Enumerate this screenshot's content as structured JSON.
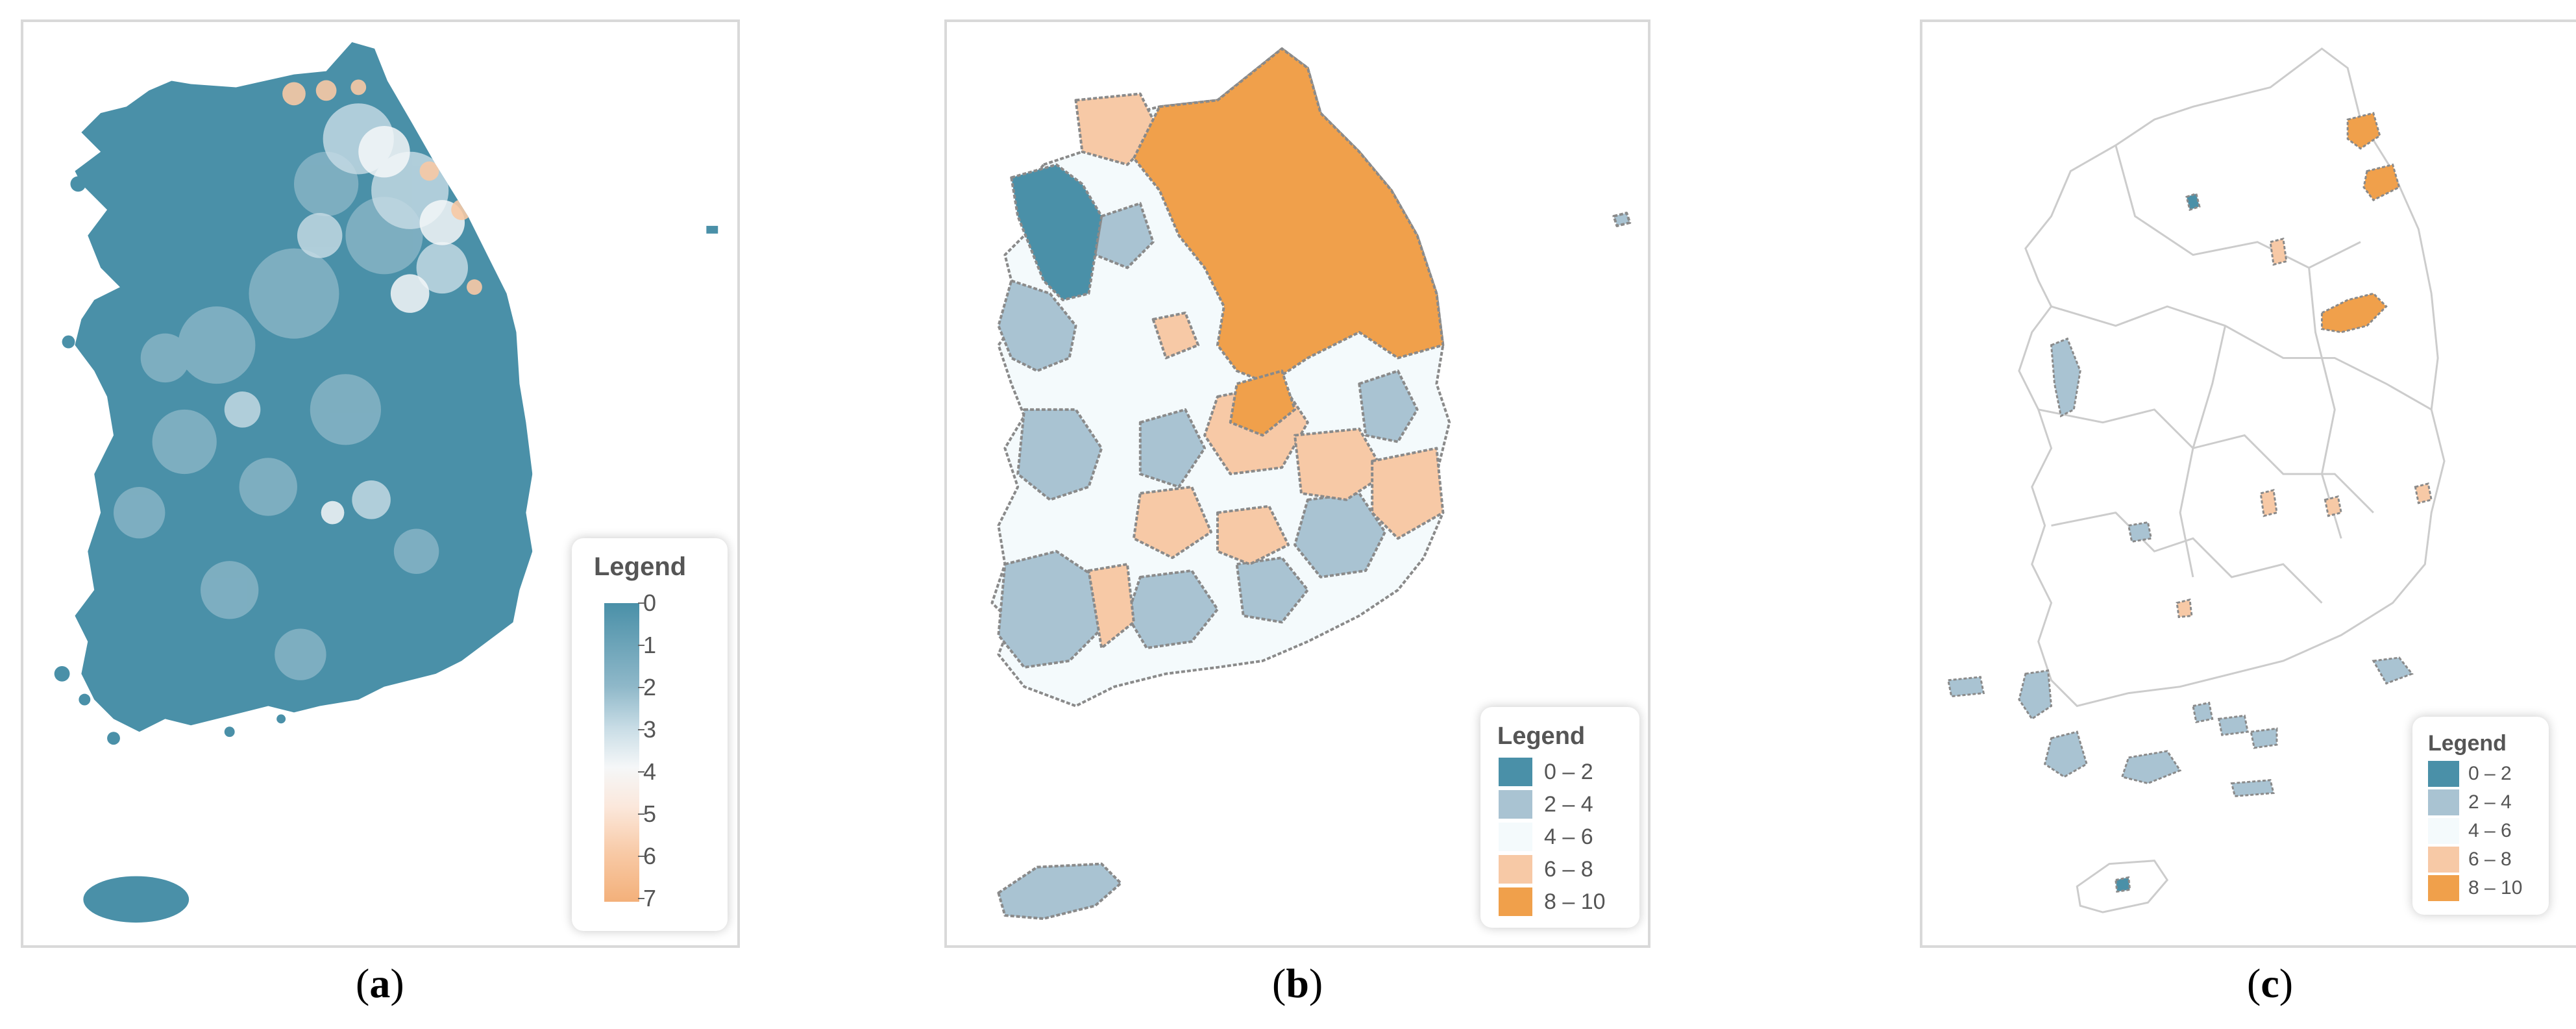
{
  "panels": [
    {
      "id": "a",
      "caption": "a",
      "legend": {
        "title": "Legend",
        "type": "continuous",
        "ticks": [
          "0",
          "1",
          "2",
          "3",
          "4",
          "5",
          "6",
          "7"
        ],
        "colors": [
          "#4a90a8",
          "#f5f7f8",
          "#f3b07a"
        ]
      }
    },
    {
      "id": "b",
      "caption": "b",
      "legend": {
        "title": "Legend",
        "type": "classes",
        "classes": [
          {
            "label": "0 – 2",
            "color": "#4a90a8"
          },
          {
            "label": "2 – 4",
            "color": "#a9c3d2"
          },
          {
            "label": "4 – 6",
            "color": "#f4fafc"
          },
          {
            "label": "6 – 8",
            "color": "#f7c9a6"
          },
          {
            "label": "8 – 10",
            "color": "#f0a04b"
          }
        ]
      }
    },
    {
      "id": "c",
      "caption": "c",
      "legend": {
        "title": "Legend",
        "type": "classes",
        "classes": [
          {
            "label": "0 – 2",
            "color": "#4a90a8"
          },
          {
            "label": "2 – 4",
            "color": "#a9c3d2"
          },
          {
            "label": "4 – 6",
            "color": "#f4fafc"
          },
          {
            "label": "6 – 8",
            "color": "#f7c9a6"
          },
          {
            "label": "8 – 10",
            "color": "#f0a04b"
          }
        ]
      }
    }
  ],
  "colors": {
    "teal": "#4a90a8",
    "light_blue": "#a9c3d2",
    "near_white": "#f4fafc",
    "peach": "#f7c9a6",
    "orange": "#f0a04b",
    "boundary_gray": "#8a8a8a",
    "outline_light": "#cccccc"
  }
}
